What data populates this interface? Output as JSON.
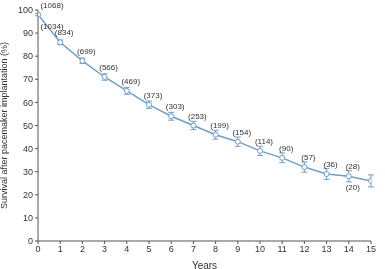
{
  "chart_data": {
    "type": "line",
    "x_label": "Years",
    "y_label": "Survival after pacemaker implantation (%)",
    "x": [
      0,
      1,
      2,
      3,
      4,
      5,
      6,
      7,
      8,
      9,
      10,
      11,
      12,
      13,
      14,
      15
    ],
    "values": [
      98,
      86,
      78,
      71,
      65,
      59,
      54,
      50,
      46,
      43,
      39,
      36,
      32,
      29,
      28,
      26
    ],
    "errors": [
      0.5,
      1,
      1.2,
      1.4,
      1.5,
      1.6,
      1.7,
      1.8,
      1.9,
      2,
      2,
      2.1,
      2.2,
      2.3,
      2.4,
      2.6
    ],
    "at_risk": [
      [
        "(1068)",
        "(1034)"
      ],
      [
        "(834)"
      ],
      [
        "(699)"
      ],
      [
        "(566)"
      ],
      [
        "(469)"
      ],
      [
        "(373)"
      ],
      [
        "(303)"
      ],
      [
        "(253)"
      ],
      [
        "(199)"
      ],
      [
        "(154)"
      ],
      [
        "(114)"
      ],
      [
        "(90)"
      ],
      [
        "(57)"
      ],
      [
        "(36)"
      ],
      [
        "(28)",
        "(20)"
      ]
    ],
    "color": "#6f9fc8",
    "marker": "circle",
    "xlim": [
      0,
      15
    ],
    "xticks": [
      0,
      1,
      2,
      3,
      4,
      5,
      6,
      7,
      8,
      9,
      10,
      11,
      12,
      13,
      14,
      15
    ],
    "ylim": [
      0,
      100
    ],
    "yticks": [
      0,
      10,
      20,
      30,
      40,
      50,
      60,
      70,
      80,
      90,
      100
    ],
    "grid": false
  }
}
